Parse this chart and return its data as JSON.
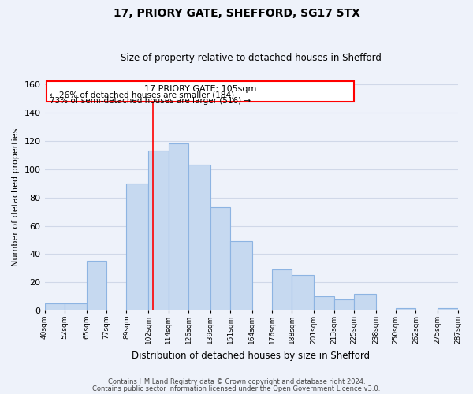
{
  "title": "17, PRIORY GATE, SHEFFORD, SG17 5TX",
  "subtitle": "Size of property relative to detached houses in Shefford",
  "xlabel": "Distribution of detached houses by size in Shefford",
  "ylabel": "Number of detached properties",
  "bar_left_edges": [
    40,
    52,
    65,
    77,
    89,
    102,
    114,
    126,
    139,
    151,
    164,
    176,
    188,
    201,
    213,
    225,
    238,
    250,
    262,
    275
  ],
  "bar_heights": [
    5,
    5,
    35,
    0,
    90,
    113,
    118,
    103,
    73,
    49,
    0,
    29,
    25,
    10,
    8,
    12,
    0,
    2,
    0,
    2
  ],
  "bar_widths": [
    12,
    13,
    12,
    12,
    13,
    12,
    12,
    13,
    12,
    13,
    12,
    12,
    13,
    12,
    12,
    13,
    12,
    12,
    13,
    12
  ],
  "bar_color": "#c6d9f0",
  "bar_edge_color": "#8db4e2",
  "xlim_left": 40,
  "xlim_right": 287,
  "ylim_top": 160,
  "yticks": [
    0,
    20,
    40,
    60,
    80,
    100,
    120,
    140,
    160
  ],
  "tick_labels": [
    "40sqm",
    "52sqm",
    "65sqm",
    "77sqm",
    "89sqm",
    "102sqm",
    "114sqm",
    "126sqm",
    "139sqm",
    "151sqm",
    "164sqm",
    "176sqm",
    "188sqm",
    "201sqm",
    "213sqm",
    "225sqm",
    "238sqm",
    "250sqm",
    "262sqm",
    "275sqm",
    "287sqm"
  ],
  "tick_positions": [
    40,
    52,
    65,
    77,
    89,
    102,
    114,
    126,
    139,
    151,
    164,
    176,
    188,
    201,
    213,
    225,
    238,
    250,
    262,
    275,
    287
  ],
  "property_line_x": 105,
  "annotation_title": "17 PRIORY GATE: 105sqm",
  "annotation_line1": "← 26% of detached houses are smaller (184)",
  "annotation_line2": "73% of semi-detached houses are larger (516) →",
  "footer_line1": "Contains HM Land Registry data © Crown copyright and database right 2024.",
  "footer_line2": "Contains public sector information licensed under the Open Government Licence v3.0.",
  "grid_color": "#d0d8e8",
  "background_color": "#eef2fa"
}
